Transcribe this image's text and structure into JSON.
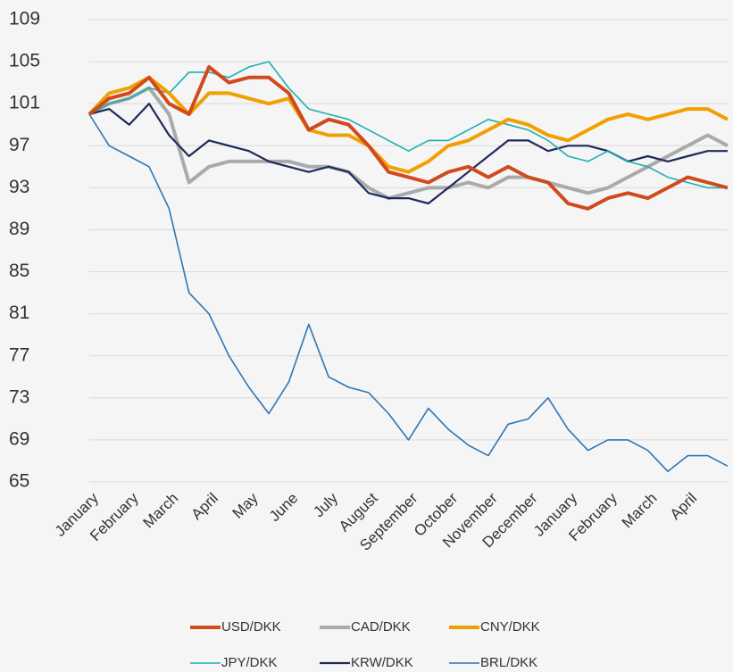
{
  "chart_data": {
    "type": "line",
    "categories": [
      "January",
      null,
      "February",
      null,
      "March",
      null,
      "April",
      null,
      "May",
      null,
      "June",
      null,
      "July",
      null,
      "August",
      null,
      "September",
      null,
      "October",
      null,
      "November",
      null,
      "December",
      null,
      "January",
      null,
      "February",
      null,
      "March",
      null,
      "April",
      null,
      null
    ],
    "series": [
      {
        "name": "USD/DKK",
        "color": "#d14a1f",
        "values": [
          100,
          101.5,
          102,
          103.5,
          101,
          100,
          104.5,
          103,
          103.5,
          103.5,
          102,
          98.5,
          99.5,
          99,
          97,
          94.5,
          94,
          93.5,
          94.5,
          95,
          94,
          95,
          94,
          93.5,
          91.5,
          91,
          92,
          92.5,
          92,
          93,
          94,
          93.5,
          93
        ]
      },
      {
        "name": "CAD/DKK",
        "color": "#aaaaaa",
        "values": [
          100,
          101,
          101.5,
          102.5,
          100,
          93.5,
          95,
          95.5,
          95.5,
          95.5,
          95.5,
          95,
          95,
          94.5,
          93,
          92,
          92.5,
          93,
          93,
          93.5,
          93,
          94,
          94,
          93.5,
          93,
          92.5,
          93,
          94,
          95,
          96,
          97,
          98,
          97
        ]
      },
      {
        "name": "CNY/DKK",
        "color": "#f0a000",
        "values": [
          100,
          102,
          102.5,
          103.5,
          102,
          100,
          102,
          102,
          101.5,
          101,
          101.5,
          98.5,
          98,
          98,
          97,
          95,
          94.5,
          95.5,
          97,
          97.5,
          98.5,
          99.5,
          99,
          98,
          97.5,
          98.5,
          99.5,
          100,
          99.5,
          100,
          100.5,
          100.5,
          99.5
        ]
      },
      {
        "name": "JPY/DKK",
        "color": "#1ab0b0",
        "values": [
          100,
          101,
          101.5,
          102.5,
          102,
          104,
          104,
          103.5,
          104.5,
          105,
          102.5,
          100.5,
          100,
          99.5,
          98.5,
          97.5,
          96.5,
          97.5,
          97.5,
          98.5,
          99.5,
          99,
          98.5,
          97.5,
          96,
          95.5,
          96.5,
          95.5,
          95,
          94,
          93.5,
          93,
          93
        ]
      },
      {
        "name": "KRW/DKK",
        "color": "#1f2a5a",
        "values": [
          100,
          100.5,
          99,
          101,
          98,
          96,
          97.5,
          97,
          96.5,
          95.5,
          95,
          94.5,
          95,
          94.5,
          92.5,
          92,
          92,
          91.5,
          93,
          94.5,
          96,
          97.5,
          97.5,
          96.5,
          97,
          97,
          96.5,
          95.5,
          96,
          95.5,
          96,
          96.5,
          96.5
        ]
      },
      {
        "name": "BRL/DKK",
        "color": "#2e75b6",
        "values": [
          100,
          97,
          96,
          95,
          91,
          83,
          81,
          77,
          74,
          71.5,
          74.5,
          80,
          75,
          74,
          73.5,
          71.5,
          69,
          72,
          70,
          68.5,
          67.5,
          70.5,
          71,
          73,
          70,
          68,
          69,
          69,
          68,
          66,
          67.5,
          67.5,
          66.5
        ]
      }
    ],
    "ylim": [
      65,
      109
    ],
    "yticks": [
      65,
      69,
      73,
      77,
      81,
      85,
      89,
      93,
      97,
      101,
      105,
      109
    ],
    "grid": true
  }
}
